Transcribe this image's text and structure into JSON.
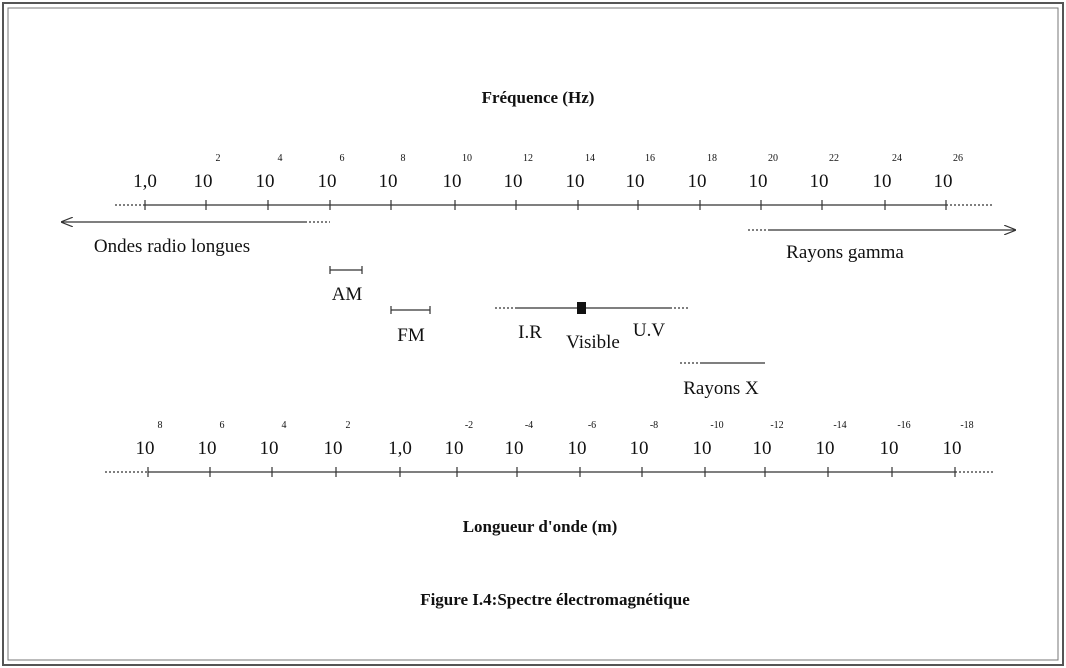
{
  "frequency_axis": {
    "label": "Fréquence (Hz)",
    "ticks": [
      {
        "base": "1,0"
      },
      {
        "base": "10",
        "exponent": "2"
      },
      {
        "base": "10",
        "exponent": "4"
      },
      {
        "base": "10",
        "exponent": "6"
      },
      {
        "base": "10",
        "exponent": "8"
      },
      {
        "base": "10",
        "exponent": "10"
      },
      {
        "base": "10",
        "exponent": "12"
      },
      {
        "base": "10",
        "exponent": "14"
      },
      {
        "base": "10",
        "exponent": "16"
      },
      {
        "base": "10",
        "exponent": "18"
      },
      {
        "base": "10",
        "exponent": "20"
      },
      {
        "base": "10",
        "exponent": "22"
      },
      {
        "base": "10",
        "exponent": "24"
      },
      {
        "base": "10",
        "exponent": "26"
      }
    ]
  },
  "wavelength_axis": {
    "label": "Longueur d'onde (m)",
    "ticks": [
      {
        "base": "10",
        "exponent": "8"
      },
      {
        "base": "10",
        "exponent": "6"
      },
      {
        "base": "10",
        "exponent": "4"
      },
      {
        "base": "10",
        "exponent": "2"
      },
      {
        "base": "1,0"
      },
      {
        "base": "10",
        "exponent": "-2"
      },
      {
        "base": "10",
        "exponent": "-4"
      },
      {
        "base": "10",
        "exponent": "-6"
      },
      {
        "base": "10",
        "exponent": "-8"
      },
      {
        "base": "10",
        "exponent": "-10"
      },
      {
        "base": "10",
        "exponent": "-12"
      },
      {
        "base": "10",
        "exponent": "-14"
      },
      {
        "base": "10",
        "exponent": "-16"
      },
      {
        "base": "10",
        "exponent": "-18"
      }
    ]
  },
  "bands": {
    "radio": "Ondes radio longues",
    "gamma": "Rayons gamma",
    "am": "AM",
    "fm": "FM",
    "ir": "I.R",
    "visible": "Visible",
    "uv": "U.V",
    "xray": "Rayons X"
  },
  "caption": "Figure I.4:Spectre électromagnétique"
}
